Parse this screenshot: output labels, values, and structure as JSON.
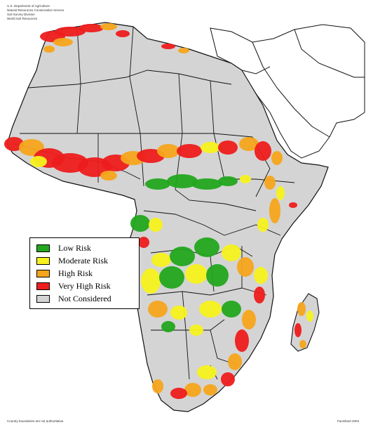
{
  "header": {
    "lines": [
      "U.S. Department of Agriculture",
      "Natural Resources Conservation Service",
      "Soil Survey Division",
      "World Soil Resources"
    ]
  },
  "legend": {
    "items": [
      {
        "label": "Low Risk",
        "color": "#22a61e"
      },
      {
        "label": "Moderate Risk",
        "color": "#f7f21e"
      },
      {
        "label": "High Risk",
        "color": "#f5a51c"
      },
      {
        "label": "Very High Risk",
        "color": "#ee1c1c"
      },
      {
        "label": "Not Considered",
        "color": "#d4d4d4"
      }
    ]
  },
  "colors": {
    "land": "#d4d4d4",
    "border": "#111111",
    "sea": "#ffffff"
  },
  "footer": {
    "left": "Country boundaries are not authoritative.",
    "right": "Factsheet 2003"
  }
}
